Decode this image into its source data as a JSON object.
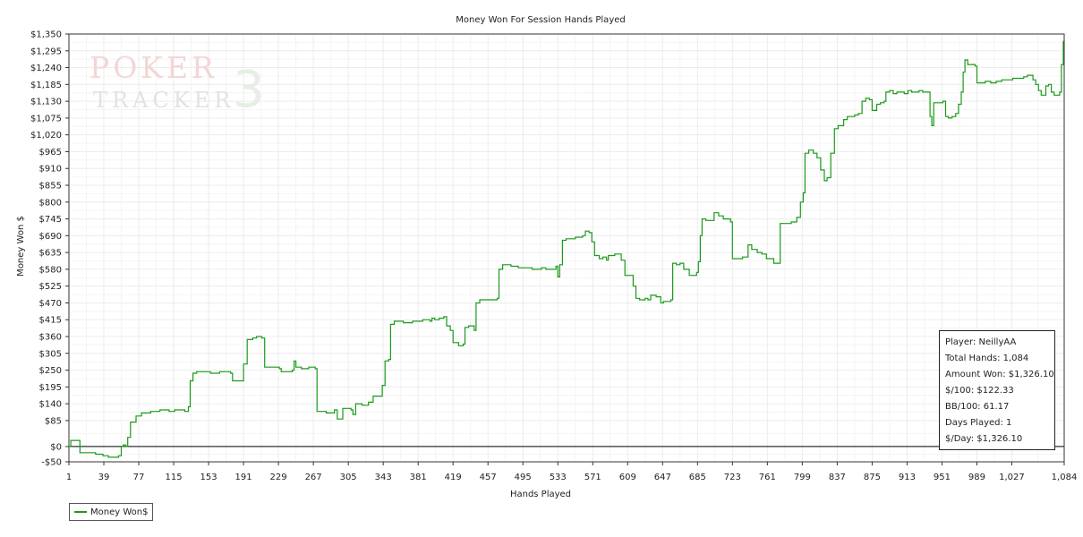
{
  "watermark": {
    "line1": "POKER",
    "line2": "TRACKER",
    "number": "3"
  },
  "stats": {
    "player": "Player: NeillyAA",
    "total_hands": "Total Hands: 1,084",
    "amount_won": "Amount Won: $1,326.10",
    "per_100": "$/100: $122.33",
    "bb_per_100": "BB/100: 61.17",
    "days_played": "Days Played: 1",
    "per_day": "$/Day: $1,326.10"
  },
  "legend": {
    "label": "Money Won$"
  },
  "colors": {
    "series": "#1a9a1a",
    "grid": "#ececec",
    "axis": "#333333"
  },
  "chart_data": {
    "type": "line",
    "title": "Money Won For Session Hands Played",
    "xlabel": "Hands Played",
    "ylabel": "Money Won $",
    "xlim": [
      1,
      1084
    ],
    "ylim": [
      -50,
      1350
    ],
    "x_ticks": [
      1,
      39,
      77,
      115,
      153,
      191,
      229,
      267,
      305,
      343,
      381,
      419,
      457,
      495,
      533,
      571,
      609,
      647,
      685,
      723,
      761,
      799,
      837,
      875,
      913,
      951,
      989,
      1027,
      1084
    ],
    "x_tick_labels": [
      "1",
      "39",
      "77",
      "115",
      "153",
      "191",
      "229",
      "267",
      "305",
      "343",
      "381",
      "419",
      "457",
      "495",
      "533",
      "571",
      "609",
      "647",
      "685",
      "723",
      "761",
      "799",
      "837",
      "875",
      "913",
      "951",
      "989",
      "1,027",
      "1,084"
    ],
    "y_ticks": [
      -50,
      0,
      85,
      140,
      195,
      250,
      305,
      360,
      415,
      470,
      525,
      580,
      635,
      690,
      745,
      800,
      855,
      910,
      965,
      1020,
      1075,
      1130,
      1185,
      1240,
      1295,
      1350
    ],
    "y_tick_labels": [
      "-$50",
      "$0",
      "$85",
      "$140",
      "$195",
      "$250",
      "$305",
      "$360",
      "$415",
      "$470",
      "$525",
      "$580",
      "$635",
      "$690",
      "$745",
      "$800",
      "$855",
      "$910",
      "$965",
      "$1,020",
      "$1,075",
      "$1,130",
      "$1,185",
      "$1,240",
      "$1,295",
      "$1,350"
    ],
    "grid": true,
    "legend_position": "bottom-left",
    "series": [
      {
        "name": "Money Won$",
        "points": [
          [
            1,
            0
          ],
          [
            3,
            20
          ],
          [
            11,
            20
          ],
          [
            13,
            -20
          ],
          [
            30,
            -25
          ],
          [
            38,
            -30
          ],
          [
            42,
            -30
          ],
          [
            44,
            -35
          ],
          [
            55,
            -30
          ],
          [
            58,
            0
          ],
          [
            60,
            5
          ],
          [
            63,
            0
          ],
          [
            65,
            30
          ],
          [
            68,
            80
          ],
          [
            72,
            80
          ],
          [
            74,
            100
          ],
          [
            80,
            110
          ],
          [
            90,
            115
          ],
          [
            98,
            115
          ],
          [
            100,
            120
          ],
          [
            110,
            115
          ],
          [
            116,
            120
          ],
          [
            127,
            115
          ],
          [
            131,
            130
          ],
          [
            133,
            215
          ],
          [
            136,
            240
          ],
          [
            140,
            245
          ],
          [
            155,
            240
          ],
          [
            165,
            245
          ],
          [
            177,
            240
          ],
          [
            179,
            215
          ],
          [
            189,
            215
          ],
          [
            191,
            270
          ],
          [
            195,
            350
          ],
          [
            201,
            355
          ],
          [
            205,
            360
          ],
          [
            211,
            355
          ],
          [
            214,
            260
          ],
          [
            220,
            260
          ],
          [
            230,
            255
          ],
          [
            232,
            245
          ],
          [
            240,
            245
          ],
          [
            244,
            250
          ],
          [
            246,
            280
          ],
          [
            248,
            260
          ],
          [
            254,
            255
          ],
          [
            262,
            260
          ],
          [
            269,
            255
          ],
          [
            271,
            115
          ],
          [
            276,
            115
          ],
          [
            281,
            110
          ],
          [
            290,
            120
          ],
          [
            293,
            90
          ],
          [
            297,
            90
          ],
          [
            299,
            125
          ],
          [
            308,
            120
          ],
          [
            310,
            105
          ],
          [
            313,
            140
          ],
          [
            320,
            135
          ],
          [
            327,
            145
          ],
          [
            332,
            165
          ],
          [
            340,
            165
          ],
          [
            342,
            200
          ],
          [
            345,
            280
          ],
          [
            349,
            285
          ],
          [
            351,
            400
          ],
          [
            355,
            410
          ],
          [
            365,
            405
          ],
          [
            375,
            410
          ],
          [
            382,
            410
          ],
          [
            386,
            415
          ],
          [
            394,
            410
          ],
          [
            396,
            420
          ],
          [
            399,
            415
          ],
          [
            404,
            420
          ],
          [
            409,
            425
          ],
          [
            412,
            395
          ],
          [
            416,
            380
          ],
          [
            419,
            340
          ],
          [
            425,
            330
          ],
          [
            430,
            335
          ],
          [
            432,
            390
          ],
          [
            436,
            395
          ],
          [
            440,
            395
          ],
          [
            442,
            380
          ],
          [
            444,
            470
          ],
          [
            448,
            480
          ],
          [
            460,
            480
          ],
          [
            467,
            485
          ],
          [
            469,
            580
          ],
          [
            473,
            595
          ],
          [
            478,
            595
          ],
          [
            482,
            590
          ],
          [
            486,
            590
          ],
          [
            490,
            585
          ],
          [
            505,
            580
          ],
          [
            515,
            585
          ],
          [
            520,
            580
          ],
          [
            531,
            590
          ],
          [
            533,
            555
          ],
          [
            535,
            595
          ],
          [
            538,
            675
          ],
          [
            542,
            680
          ],
          [
            548,
            680
          ],
          [
            552,
            685
          ],
          [
            560,
            690
          ],
          [
            563,
            705
          ],
          [
            567,
            700
          ],
          [
            570,
            670
          ],
          [
            573,
            625
          ],
          [
            578,
            615
          ],
          [
            582,
            620
          ],
          [
            586,
            610
          ],
          [
            588,
            625
          ],
          [
            591,
            625
          ],
          [
            595,
            630
          ],
          [
            600,
            630
          ],
          [
            602,
            610
          ],
          [
            606,
            560
          ],
          [
            611,
            560
          ],
          [
            615,
            525
          ],
          [
            618,
            485
          ],
          [
            622,
            480
          ],
          [
            628,
            485
          ],
          [
            631,
            480
          ],
          [
            634,
            495
          ],
          [
            640,
            490
          ],
          [
            645,
            470
          ],
          [
            648,
            475
          ],
          [
            650,
            475
          ],
          [
            656,
            480
          ],
          [
            658,
            600
          ],
          [
            662,
            595
          ],
          [
            666,
            600
          ],
          [
            670,
            580
          ],
          [
            676,
            560
          ],
          [
            682,
            560
          ],
          [
            684,
            570
          ],
          [
            686,
            605
          ],
          [
            688,
            690
          ],
          [
            690,
            745
          ],
          [
            694,
            740
          ],
          [
            700,
            740
          ],
          [
            703,
            765
          ],
          [
            708,
            755
          ],
          [
            713,
            745
          ],
          [
            717,
            745
          ],
          [
            721,
            735
          ],
          [
            723,
            615
          ],
          [
            728,
            615
          ],
          [
            734,
            620
          ],
          [
            738,
            620
          ],
          [
            740,
            660
          ],
          [
            744,
            645
          ],
          [
            750,
            635
          ],
          [
            755,
            630
          ],
          [
            760,
            615
          ],
          [
            764,
            615
          ],
          [
            768,
            600
          ],
          [
            771,
            600
          ],
          [
            775,
            730
          ],
          [
            780,
            730
          ],
          [
            787,
            735
          ],
          [
            793,
            750
          ],
          [
            797,
            800
          ],
          [
            800,
            830
          ],
          [
            802,
            960
          ],
          [
            806,
            970
          ],
          [
            811,
            960
          ],
          [
            815,
            945
          ],
          [
            819,
            905
          ],
          [
            823,
            870
          ],
          [
            826,
            880
          ],
          [
            830,
            960
          ],
          [
            834,
            1040
          ],
          [
            838,
            1050
          ],
          [
            844,
            1070
          ],
          [
            848,
            1080
          ],
          [
            852,
            1080
          ],
          [
            856,
            1085
          ],
          [
            860,
            1090
          ],
          [
            864,
            1130
          ],
          [
            868,
            1140
          ],
          [
            872,
            1135
          ],
          [
            875,
            1100
          ],
          [
            880,
            1120
          ],
          [
            884,
            1125
          ],
          [
            888,
            1130
          ],
          [
            890,
            1160
          ],
          [
            894,
            1165
          ],
          [
            898,
            1155
          ],
          [
            902,
            1160
          ],
          [
            906,
            1160
          ],
          [
            910,
            1155
          ],
          [
            914,
            1165
          ],
          [
            918,
            1160
          ],
          [
            922,
            1160
          ],
          [
            926,
            1165
          ],
          [
            930,
            1160
          ],
          [
            934,
            1160
          ],
          [
            938,
            1080
          ],
          [
            940,
            1050
          ],
          [
            942,
            1125
          ],
          [
            946,
            1125
          ],
          [
            952,
            1130
          ],
          [
            955,
            1080
          ],
          [
            958,
            1075
          ],
          [
            962,
            1080
          ],
          [
            966,
            1090
          ],
          [
            969,
            1120
          ],
          [
            972,
            1160
          ],
          [
            974,
            1225
          ],
          [
            976,
            1265
          ],
          [
            979,
            1250
          ],
          [
            983,
            1250
          ],
          [
            987,
            1245
          ],
          [
            989,
            1190
          ],
          [
            993,
            1190
          ],
          [
            998,
            1195
          ],
          [
            1004,
            1190
          ],
          [
            1010,
            1195
          ],
          [
            1016,
            1200
          ],
          [
            1022,
            1200
          ],
          [
            1028,
            1205
          ],
          [
            1034,
            1205
          ],
          [
            1040,
            1210
          ],
          [
            1044,
            1215
          ],
          [
            1047,
            1215
          ],
          [
            1050,
            1200
          ],
          [
            1053,
            1185
          ],
          [
            1056,
            1165
          ],
          [
            1059,
            1150
          ],
          [
            1062,
            1150
          ],
          [
            1064,
            1180
          ],
          [
            1067,
            1185
          ],
          [
            1070,
            1160
          ],
          [
            1073,
            1150
          ],
          [
            1076,
            1150
          ],
          [
            1079,
            1160
          ],
          [
            1081,
            1250
          ],
          [
            1083,
            1326.1
          ],
          [
            1084,
            1326.1
          ]
        ]
      }
    ]
  }
}
